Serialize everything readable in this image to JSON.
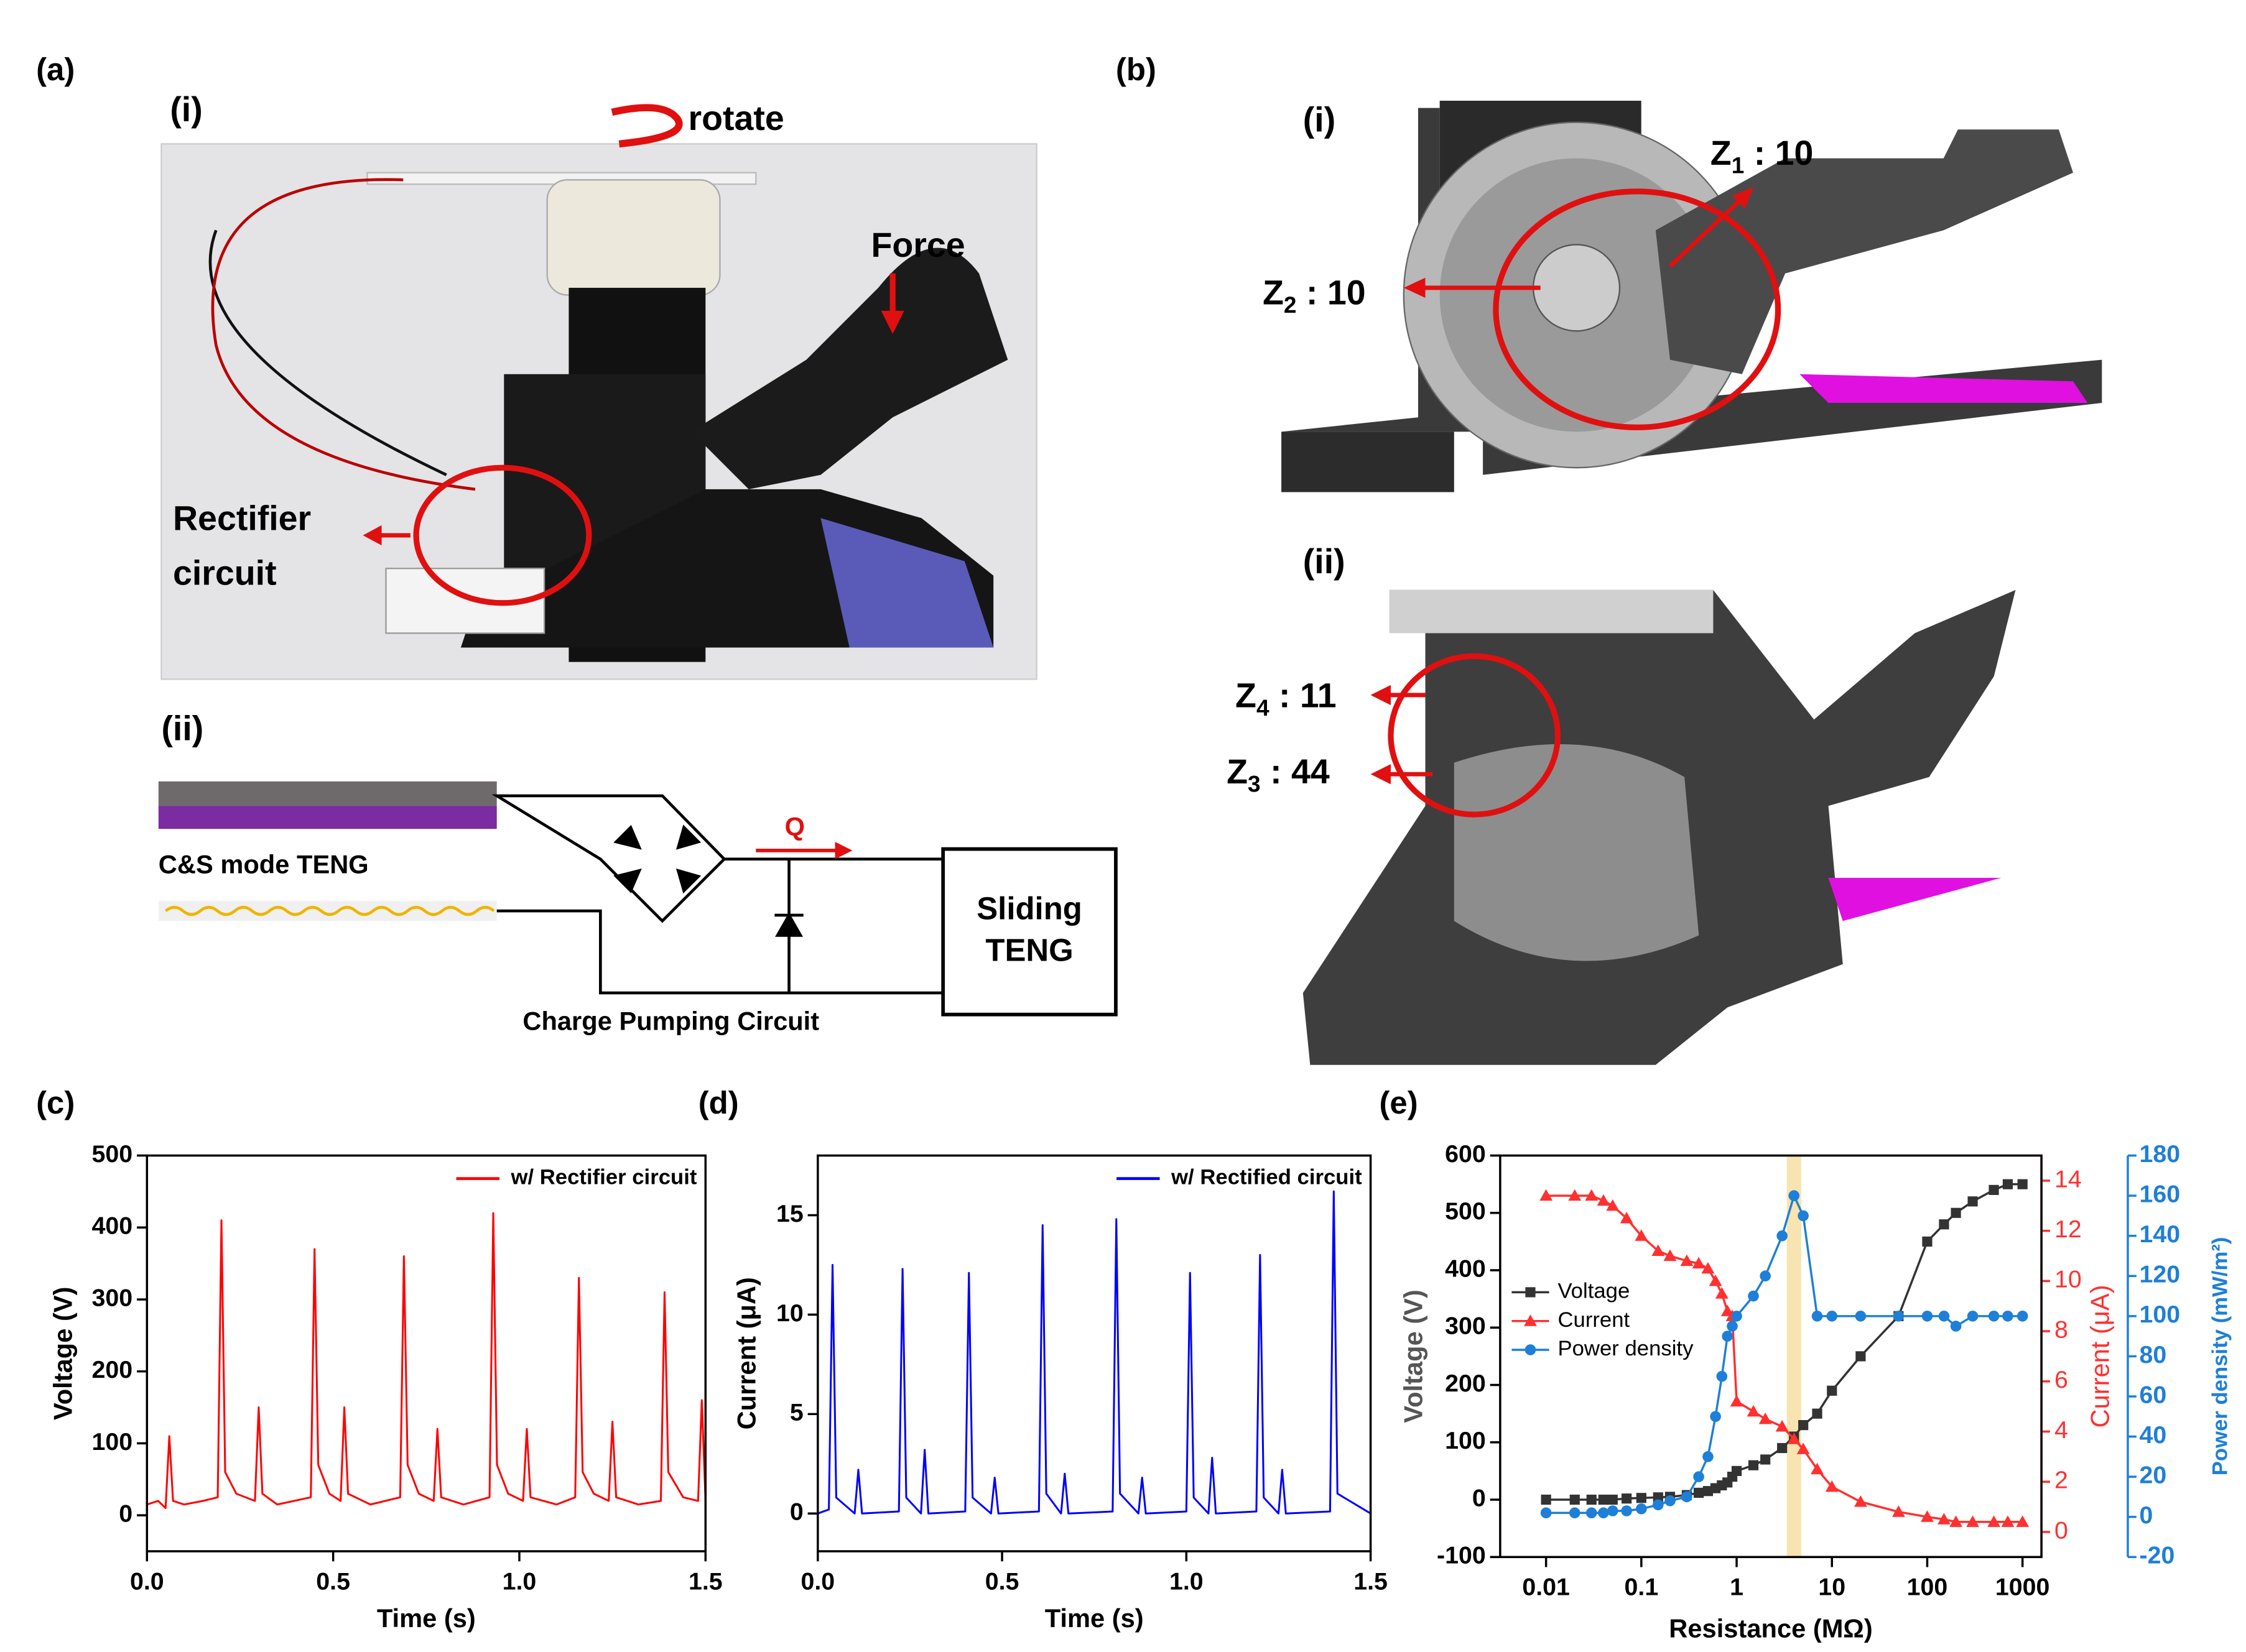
{
  "panels": {
    "a": {
      "label": "(a)",
      "sub_i": "(i)",
      "rotate": "rotate",
      "force": "Force",
      "rectifier": [
        "Rectifier",
        "circuit"
      ],
      "sub_ii": "(ii)",
      "teng": "C&S mode TENG",
      "charge": "Q",
      "sliding": [
        "Sliding",
        "TENG"
      ],
      "pump": "Charge Pumping Circuit"
    },
    "b": {
      "label": "(b)",
      "sub_i": "(i)",
      "sub_ii": "(ii)",
      "gears": [
        {
          "symbol": "Z",
          "sub": "1",
          "count": " : 10"
        },
        {
          "symbol": "Z",
          "sub": "2",
          "count": " : 10"
        },
        {
          "symbol": "Z",
          "sub": "4",
          "count": " : 11"
        },
        {
          "symbol": "Z",
          "sub": "3",
          "count": " : 44"
        }
      ]
    }
  },
  "chart_data": [
    {
      "label": "(c)",
      "type": "line",
      "xlabel": "Time (s)",
      "ylabel": "Voltage (V)",
      "legend": "upper right",
      "xlim": [
        0,
        1.5
      ],
      "ylim": [
        -50,
        500
      ],
      "xticks": [
        {
          "value": 0,
          "label": "0.0"
        },
        0.5,
        {
          "value": 1,
          "label": "1.0"
        },
        1.5
      ],
      "yticks": [
        0,
        100,
        200,
        300,
        400,
        500
      ],
      "x": [
        0,
        0.03,
        0.05,
        0.06,
        0.07,
        0.1,
        0.15,
        0.19,
        0.2,
        0.21,
        0.24,
        0.29,
        0.3,
        0.31,
        0.35,
        0.44,
        0.45,
        0.46,
        0.49,
        0.52,
        0.53,
        0.54,
        0.6,
        0.68,
        0.69,
        0.7,
        0.73,
        0.77,
        0.78,
        0.79,
        0.85,
        0.92,
        0.93,
        0.94,
        0.97,
        1.01,
        1.02,
        1.03,
        1.1,
        1.15,
        1.16,
        1.17,
        1.2,
        1.24,
        1.25,
        1.26,
        1.32,
        1.38,
        1.39,
        1.4,
        1.44,
        1.48,
        1.49,
        1.5
      ],
      "series": [
        {
          "name": "w/ Rectifier circuit",
          "color": "#ff0000",
          "values": [
            15,
            20,
            10,
            110,
            20,
            15,
            20,
            25,
            410,
            60,
            30,
            20,
            150,
            30,
            15,
            25,
            370,
            70,
            30,
            20,
            150,
            30,
            15,
            25,
            360,
            70,
            30,
            20,
            120,
            25,
            15,
            25,
            420,
            70,
            30,
            20,
            120,
            25,
            15,
            25,
            330,
            60,
            30,
            20,
            130,
            25,
            15,
            20,
            310,
            60,
            25,
            20,
            160,
            20
          ]
        }
      ]
    },
    {
      "label": "(d)",
      "type": "line",
      "xlabel": "Time (s)",
      "ylabel": "Current (μA)",
      "legend": "upper right",
      "xlim": [
        0,
        1.5
      ],
      "ylim": [
        -1.9,
        18
      ],
      "xticks": [
        {
          "value": 0,
          "label": "0.0"
        },
        0.5,
        {
          "value": 1,
          "label": "1.0"
        },
        1.5
      ],
      "yticks": [
        0,
        5,
        10,
        15
      ],
      "x": [
        0,
        0.03,
        0.04,
        0.05,
        0.1,
        0.11,
        0.12,
        0.22,
        0.23,
        0.24,
        0.28,
        0.29,
        0.3,
        0.4,
        0.41,
        0.42,
        0.47,
        0.48,
        0.49,
        0.6,
        0.61,
        0.62,
        0.66,
        0.67,
        0.68,
        0.8,
        0.81,
        0.82,
        0.87,
        0.88,
        0.89,
        1.0,
        1.01,
        1.02,
        1.06,
        1.07,
        1.08,
        1.19,
        1.2,
        1.21,
        1.25,
        1.26,
        1.27,
        1.39,
        1.4,
        1.41,
        1.5
      ],
      "series": [
        {
          "name": "w/ Rectified circuit",
          "color": "#0000ff",
          "values": [
            0,
            0.2,
            12.5,
            0.8,
            0,
            2.2,
            0,
            0.1,
            12.3,
            0.8,
            0,
            3.2,
            0,
            0.1,
            12.1,
            0.8,
            0,
            1.8,
            0,
            0.1,
            14.5,
            1,
            0,
            2,
            0,
            0.1,
            14.8,
            1,
            0,
            1.8,
            0,
            0.1,
            12.1,
            0.8,
            0,
            2.8,
            0,
            0.1,
            13,
            0.8,
            0,
            2.2,
            0,
            0.1,
            16.2,
            1,
            0
          ]
        }
      ]
    },
    {
      "label": "(e)",
      "type": "line",
      "markers": true,
      "log_x": true,
      "legend": "center left",
      "highlight": 4,
      "xlabel": "Resistance (MΩ)",
      "ylabel": "Voltage (V)",
      "y2label": "Current (μA)",
      "y3label": "Power density (mW/m²)",
      "xlim": [
        0.0033,
        1580
      ],
      "ylim": [
        -100,
        600
      ],
      "y2lim": [
        -1,
        15
      ],
      "y3lim": [
        -20,
        180
      ],
      "xticks": [
        0.01,
        0.1,
        1,
        10,
        100,
        1000
      ],
      "yticks": [
        -100,
        0,
        100,
        200,
        300,
        400,
        500,
        600
      ],
      "y2ticks": [
        0,
        2,
        4,
        6,
        8,
        10,
        12,
        14
      ],
      "y3ticks": [
        -20,
        0,
        20,
        40,
        60,
        80,
        100,
        120,
        140,
        160,
        180
      ],
      "x": [
        0.01,
        0.02,
        0.03,
        0.04,
        0.05,
        0.07,
        0.1,
        0.15,
        0.2,
        0.3,
        0.4,
        0.5,
        0.6,
        0.7,
        0.8,
        0.9,
        1,
        1.5,
        2,
        3,
        4,
        5,
        7,
        10,
        20,
        50,
        100,
        150,
        200,
        300,
        500,
        700,
        1000
      ],
      "series": [
        {
          "name": "Voltage",
          "color": "#333333",
          "marker": "square",
          "axis": "y",
          "values": [
            0,
            0,
            0,
            0,
            0,
            2,
            3,
            4,
            5,
            8,
            12,
            15,
            20,
            25,
            30,
            40,
            50,
            60,
            70,
            90,
            110,
            130,
            150,
            190,
            250,
            320,
            450,
            480,
            500,
            520,
            540,
            550,
            550
          ]
        },
        {
          "name": "Current",
          "color": "#ff3030",
          "marker": "triangle",
          "axis": "y2",
          "values": [
            13.4,
            13.4,
            13.4,
            13.2,
            13,
            12.5,
            11.8,
            11.2,
            11,
            10.8,
            10.7,
            10.5,
            10,
            9.5,
            8.8,
            8.6,
            5.2,
            4.8,
            4.5,
            4.2,
            3.7,
            3.3,
            2.5,
            1.8,
            1.2,
            0.8,
            0.6,
            0.5,
            0.4,
            0.4,
            0.4,
            0.4,
            0.4
          ]
        },
        {
          "name": "Power density",
          "color": "#1e7fd8",
          "marker": "circle",
          "axis": "y3",
          "values": [
            2,
            2,
            2,
            2,
            3,
            3,
            4,
            6,
            8,
            10,
            20,
            30,
            50,
            70,
            90,
            95,
            100,
            110,
            120,
            140,
            160,
            150,
            100,
            100,
            100,
            100,
            100,
            100,
            95,
            100,
            100,
            100,
            100
          ]
        }
      ]
    }
  ]
}
